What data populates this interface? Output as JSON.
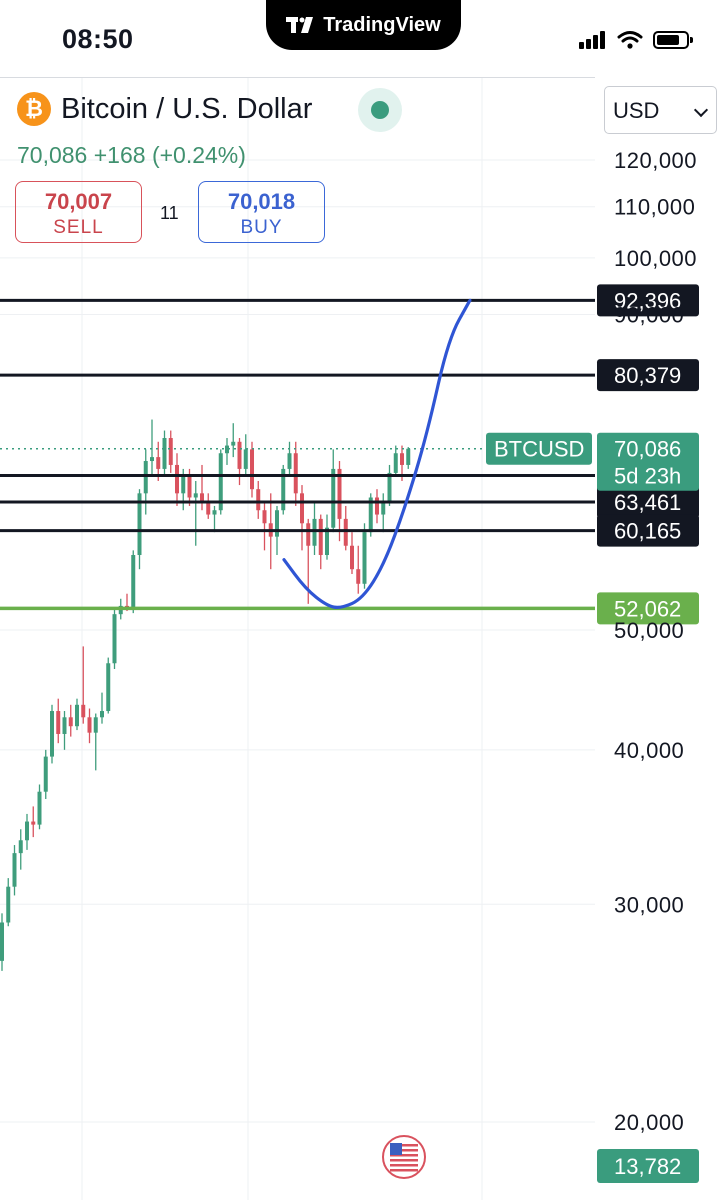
{
  "status_bar": {
    "time": "08:50",
    "brand": "TradingView"
  },
  "header": {
    "symbol": "Bitcoin / U.S. Dollar",
    "symbol_icon": "bitcoin-icon",
    "last_price": "70,086",
    "change": "+168",
    "change_pct": "(+0.24%)",
    "currency": "USD"
  },
  "trade": {
    "sell_price": "70,007",
    "sell_label": "SELL",
    "spread": "11",
    "buy_price": "70,018",
    "buy_label": "BUY"
  },
  "colors": {
    "up": "#3f9d7c",
    "down": "#d9525e",
    "curve": "#2f55d4",
    "support": "#6ab04c",
    "level": "#131722",
    "price_tag": "#3a9c7e"
  },
  "chart_data": {
    "type": "candlestick",
    "title": "",
    "y_scale": "log",
    "ylim": [
      13782,
      125000
    ],
    "y_ticks": [
      20000,
      30000,
      40000,
      50000,
      90000,
      100000,
      110000,
      120000
    ],
    "tick_labels": [
      "20,000",
      "30,000",
      "40,000",
      "50,000",
      "90,000",
      "100,000",
      "110,000",
      "120,000"
    ],
    "horizontal_levels": [
      {
        "value": 92396,
        "label": "92,396",
        "color": "#131722"
      },
      {
        "value": 80379,
        "label": "80,379",
        "color": "#131722"
      },
      {
        "value": 66677,
        "label": "66,677",
        "color": "#131722"
      },
      {
        "value": 63461,
        "label": "63,461",
        "color": "#131722"
      },
      {
        "value": 60165,
        "label": "60,165",
        "color": "#131722"
      },
      {
        "value": 52062,
        "label": "52,062",
        "color": "#6ab04c"
      }
    ],
    "current_price": {
      "value": 70086,
      "label": "70,086",
      "symbol": "BTCUSD",
      "countdown": "5d 23h"
    },
    "bottom_tag": {
      "value": 13782,
      "label": "13,782"
    },
    "projection_curve": [
      [
        0,
        57000
      ],
      [
        3,
        54000
      ],
      [
        6,
        52300
      ],
      [
        8,
        52062
      ],
      [
        11,
        53000
      ],
      [
        14,
        56500
      ],
      [
        17,
        63000
      ],
      [
        20,
        72000
      ],
      [
        23,
        86000
      ],
      [
        26,
        92396
      ]
    ],
    "candles": [
      [
        27000,
        29500,
        26500,
        29000
      ],
      [
        29000,
        31500,
        28800,
        31000
      ],
      [
        31000,
        33500,
        30500,
        33000
      ],
      [
        33000,
        34500,
        32000,
        33800
      ],
      [
        33800,
        35500,
        33200,
        35000
      ],
      [
        35000,
        36000,
        34000,
        34800
      ],
      [
        34800,
        37500,
        34500,
        37000
      ],
      [
        37000,
        40000,
        36500,
        39500
      ],
      [
        39500,
        43500,
        39000,
        43000
      ],
      [
        43000,
        44000,
        40500,
        41200
      ],
      [
        41200,
        43000,
        40000,
        42500
      ],
      [
        42500,
        43500,
        41000,
        41800
      ],
      [
        41800,
        44000,
        41500,
        43500
      ],
      [
        43500,
        48500,
        42000,
        42500
      ],
      [
        42500,
        43200,
        40500,
        41300
      ],
      [
        41300,
        42800,
        38500,
        42500
      ],
      [
        42500,
        44500,
        42000,
        43000
      ],
      [
        43000,
        47500,
        42800,
        47000
      ],
      [
        47000,
        52000,
        46500,
        51500
      ],
      [
        51500,
        53000,
        51000,
        52300
      ],
      [
        52300,
        53500,
        51800,
        51900
      ],
      [
        51900,
        58000,
        51600,
        57500
      ],
      [
        57500,
        65000,
        56000,
        64500
      ],
      [
        64500,
        70000,
        62000,
        68500
      ],
      [
        68500,
        74000,
        66500,
        69000
      ],
      [
        69000,
        71000,
        66000,
        67500
      ],
      [
        67500,
        72500,
        66500,
        71500
      ],
      [
        71500,
        72500,
        67000,
        68000
      ],
      [
        68000,
        69500,
        63000,
        64500
      ],
      [
        64500,
        67500,
        62500,
        66500
      ],
      [
        66500,
        67500,
        63000,
        64000
      ],
      [
        64000,
        66000,
        58500,
        64500
      ],
      [
        64500,
        68000,
        62500,
        63500
      ],
      [
        63500,
        64500,
        61500,
        62000
      ],
      [
        62000,
        63000,
        60000,
        62500
      ],
      [
        62500,
        70000,
        62000,
        69500
      ],
      [
        69500,
        71500,
        68000,
        70500
      ],
      [
        70500,
        73500,
        69000,
        71000
      ],
      [
        71000,
        71500,
        65500,
        67500
      ],
      [
        67500,
        72000,
        66500,
        70000
      ],
      [
        70000,
        71000,
        64000,
        65000
      ],
      [
        65000,
        66000,
        61500,
        62500
      ],
      [
        62500,
        63500,
        58000,
        61000
      ],
      [
        61000,
        64500,
        56000,
        59500
      ],
      [
        59500,
        63000,
        57500,
        62500
      ],
      [
        62500,
        68000,
        62000,
        67500
      ],
      [
        67500,
        71000,
        66500,
        69500
      ],
      [
        69500,
        71000,
        63000,
        64500
      ],
      [
        64500,
        65500,
        58000,
        61000
      ],
      [
        61000,
        61500,
        52500,
        58500
      ],
      [
        58500,
        63500,
        57500,
        61500
      ],
      [
        61500,
        62000,
        56000,
        57500
      ],
      [
        57500,
        62000,
        57000,
        60500
      ],
      [
        60500,
        70000,
        60000,
        67500
      ],
      [
        67500,
        68500,
        59000,
        61500
      ],
      [
        61500,
        63000,
        58000,
        58500
      ],
      [
        58500,
        60000,
        55500,
        56000
      ],
      [
        56000,
        58500,
        53500,
        54500
      ],
      [
        54500,
        61000,
        54000,
        60000
      ],
      [
        60000,
        64500,
        59500,
        64000
      ],
      [
        64000,
        65000,
        61000,
        62000
      ],
      [
        62000,
        64500,
        60000,
        63500
      ],
      [
        63500,
        68000,
        63000,
        67000
      ],
      [
        67000,
        70500,
        66500,
        69500
      ],
      [
        69500,
        70500,
        66000,
        68000
      ],
      [
        68000,
        70300,
        67500,
        70086
      ]
    ]
  }
}
